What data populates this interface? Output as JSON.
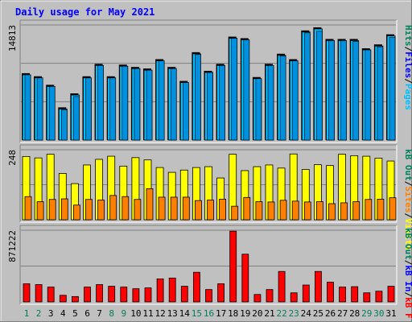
{
  "title": "Daily usage for May 2021",
  "colors": {
    "background": "#c0c0c0",
    "title": "#0000ff",
    "hits": "#00805c",
    "files": "#0000ff",
    "pages": "#00c0ff",
    "visits": "#ffff00",
    "sites": "#ff8000",
    "kbin": "#0000ff",
    "kbout": "#00805c",
    "kbf": "#ff0000",
    "weekday_label": "#00805c",
    "weekend_label": "#00805c",
    "bar_hits": "#00c0ff",
    "bar_files": "#0090e0",
    "bar_visits": "#ffff00",
    "bar_sites": "#ff8000",
    "bar_kbf": "#ff0000"
  },
  "chart_data": [
    {
      "type": "bar",
      "name": "hits-files-pages",
      "max_label": "14813",
      "legend": [
        "Pages",
        "/",
        "Files",
        "/",
        "Hits"
      ],
      "categories": [
        "1",
        "2",
        "3",
        "4",
        "5",
        "6",
        "7",
        "8",
        "9",
        "10",
        "11",
        "12",
        "13",
        "14",
        "15",
        "16",
        "17",
        "18",
        "19",
        "20",
        "21",
        "22",
        "23",
        "24",
        "25",
        "26",
        "27",
        "28",
        "29",
        "30",
        "31"
      ],
      "series": [
        {
          "name": "Hits",
          "values": [
            8400,
            8000,
            6900,
            4000,
            5800,
            8000,
            9600,
            8000,
            9500,
            9200,
            9000,
            10200,
            9200,
            7400,
            11100,
            8700,
            9600,
            13100,
            12900,
            7900,
            9600,
            10900,
            10200,
            13900,
            14300,
            12800,
            12800,
            12800,
            11600,
            12100,
            13400
          ]
        },
        {
          "name": "Files",
          "values": [
            8400,
            8000,
            6900,
            3900,
            5600,
            8000,
            9600,
            8000,
            9500,
            9200,
            9000,
            10200,
            9200,
            7400,
            11000,
            8700,
            9600,
            13100,
            12900,
            7900,
            9600,
            10800,
            10200,
            13800,
            14000,
            12800,
            12800,
            12700,
            11600,
            12000,
            13200
          ]
        }
      ],
      "ylim": [
        0,
        14813
      ]
    },
    {
      "type": "bar",
      "name": "visits-sites",
      "max_label": "248",
      "legend": [
        "Visits",
        "/",
        "Sites",
        "/",
        "kB Out"
      ],
      "categories": [
        "1",
        "2",
        "3",
        "4",
        "5",
        "6",
        "7",
        "8",
        "9",
        "10",
        "11",
        "12",
        "13",
        "14",
        "15",
        "16",
        "17",
        "18",
        "19",
        "20",
        "21",
        "22",
        "23",
        "24",
        "25",
        "26",
        "27",
        "28",
        "29",
        "30",
        "31"
      ],
      "series": [
        {
          "name": "Visits",
          "values": [
            224,
            219,
            232,
            164,
            128,
            194,
            214,
            225,
            190,
            220,
            212,
            185,
            168,
            176,
            185,
            188,
            148,
            232,
            174,
            188,
            194,
            183,
            233,
            178,
            195,
            192,
            232,
            227,
            225,
            218,
            208
          ]
        },
        {
          "name": "Sites",
          "values": [
            82,
            64,
            72,
            74,
            52,
            72,
            70,
            86,
            82,
            72,
            110,
            80,
            80,
            80,
            68,
            70,
            73,
            48,
            79,
            64,
            63,
            69,
            66,
            63,
            64,
            57,
            60,
            64,
            72,
            73,
            78
          ]
        }
      ],
      "ylim": [
        0,
        248
      ]
    },
    {
      "type": "bar",
      "name": "kbytes",
      "max_label": "871222",
      "legend": [
        "kB F",
        "/",
        "kB In",
        "/",
        "kB Out"
      ],
      "categories": [
        "1",
        "2",
        "3",
        "4",
        "5",
        "6",
        "7",
        "8",
        "9",
        "10",
        "11",
        "12",
        "13",
        "14",
        "15",
        "16",
        "17",
        "18",
        "19",
        "20",
        "21",
        "22",
        "23",
        "24",
        "25",
        "26",
        "27",
        "28",
        "29",
        "30",
        "31"
      ],
      "series": [
        {
          "name": "kB F",
          "values": [
            220000,
            210000,
            180000,
            80000,
            65000,
            180000,
            210000,
            190000,
            180000,
            160000,
            170000,
            280000,
            290000,
            190000,
            360000,
            150000,
            220000,
            860000,
            580000,
            90000,
            150000,
            370000,
            110000,
            205000,
            370000,
            240000,
            180000,
            185000,
            110000,
            130000,
            190000
          ]
        }
      ],
      "ylim": [
        0,
        871222
      ]
    }
  ],
  "x_labels": [
    "1",
    "2",
    "3",
    "4",
    "5",
    "6",
    "7",
    "8",
    "9",
    "10",
    "11",
    "12",
    "13",
    "14",
    "15",
    "16",
    "17",
    "18",
    "19",
    "20",
    "21",
    "22",
    "23",
    "24",
    "25",
    "26",
    "27",
    "28",
    "29",
    "30",
    "31"
  ],
  "weekend_days": [
    "1",
    "2",
    "8",
    "9",
    "15",
    "16",
    "22",
    "23",
    "29",
    "30"
  ]
}
